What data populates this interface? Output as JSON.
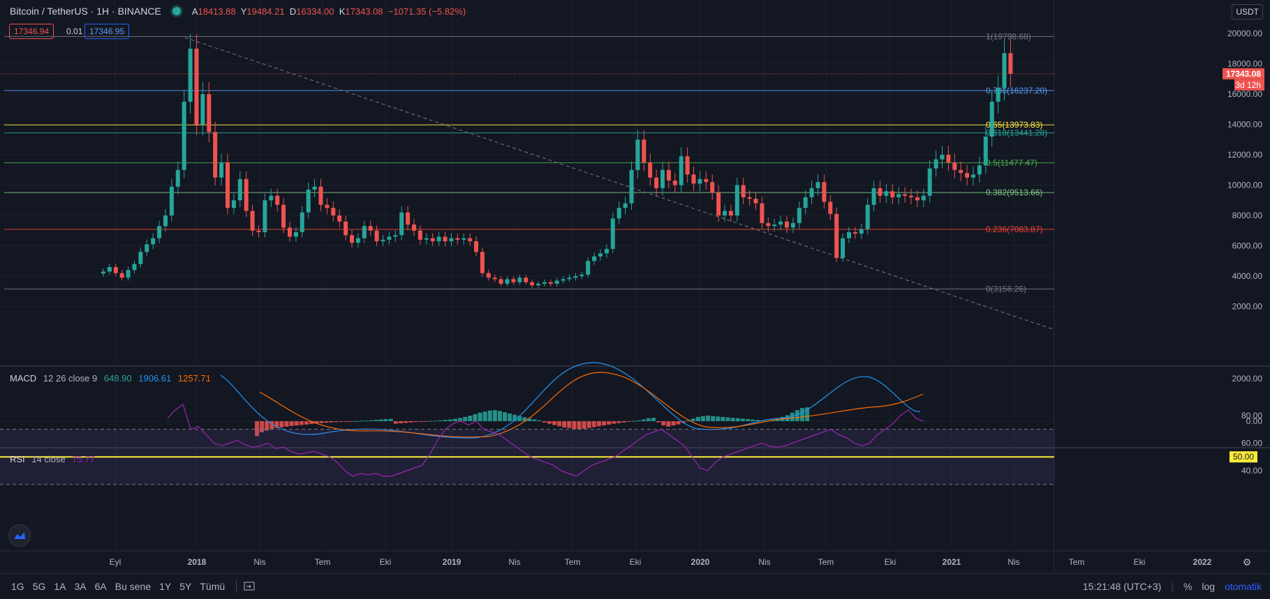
{
  "header": {
    "symbol": "Bitcoin / TetherUS · 1H · BINANCE",
    "ohlc": [
      {
        "k": "A",
        "v": "18413.88"
      },
      {
        "k": "Y",
        "v": "19484.21"
      },
      {
        "k": "D",
        "v": "16334.00"
      },
      {
        "k": "K",
        "v": "17343.08"
      }
    ],
    "change": "−1071.35 (−5.82%)",
    "sell_price": "17346.94",
    "spread": "0.01",
    "buy_price": "17346.95",
    "currency": "USDT"
  },
  "price_axis": {
    "labels": [
      "20000.00",
      "18000.00",
      "16000.00",
      "14000.00",
      "12000.00",
      "10000.00",
      "8000.00",
      "6000.00",
      "4000.00",
      "2000.00"
    ],
    "last_price": "17343.08",
    "countdown": "3d 12h"
  },
  "fib_levels": [
    {
      "label": "1(19798.68)",
      "price": 19798.68,
      "color": "#787b86"
    },
    {
      "label": "0.786(16237.20)",
      "price": 16237.2,
      "color": "#5b9cf6"
    },
    {
      "label": "0.65(13973.83)",
      "price": 13973.83,
      "color": "#ffeb3b"
    },
    {
      "label": "0.618(13441.28)",
      "price": 13441.28,
      "color": "#26a69a"
    },
    {
      "label": "0.5(11477.47)",
      "price": 11477.47,
      "color": "#4caf50"
    },
    {
      "label": "0.382(9513.66)",
      "price": 9513.66,
      "color": "#81c784"
    },
    {
      "label": "0.236(7083.87)",
      "price": 7083.87,
      "color": "#f44336"
    },
    {
      "label": "0(3156.26)",
      "price": 3156.26,
      "color": "#787b86"
    }
  ],
  "time_axis": [
    "Eyl",
    "2018",
    "Nis",
    "Tem",
    "Eki",
    "2019",
    "Nis",
    "Tem",
    "Eki",
    "2020",
    "Nis",
    "Tem",
    "Eki",
    "2021",
    "Nis",
    "Tem",
    "Eki",
    "2022"
  ],
  "macd": {
    "title": "MACD",
    "params": "12 26 close 9",
    "histogram": "648.90",
    "macd": "1906.61",
    "signal": "1257.71",
    "axis": [
      "2000.00",
      "0.00"
    ]
  },
  "rsi": {
    "title": "RSI",
    "params": "14 close",
    "value": "75.77",
    "axis": [
      "80.00",
      "60.00",
      "50.00",
      "40.00"
    ]
  },
  "bottom_bar": {
    "ranges": [
      "1G",
      "5G",
      "1A",
      "3A",
      "6A",
      "Bu sene",
      "1Y",
      "5Y",
      "Tümü"
    ],
    "clock": "15:21:48 (UTC+3)",
    "percent": "%",
    "log": "log",
    "auto": "otomatik"
  },
  "colors": {
    "up": "#26a69a",
    "down": "#ef5350",
    "bg": "#131722",
    "grid": "#1e222d"
  }
}
